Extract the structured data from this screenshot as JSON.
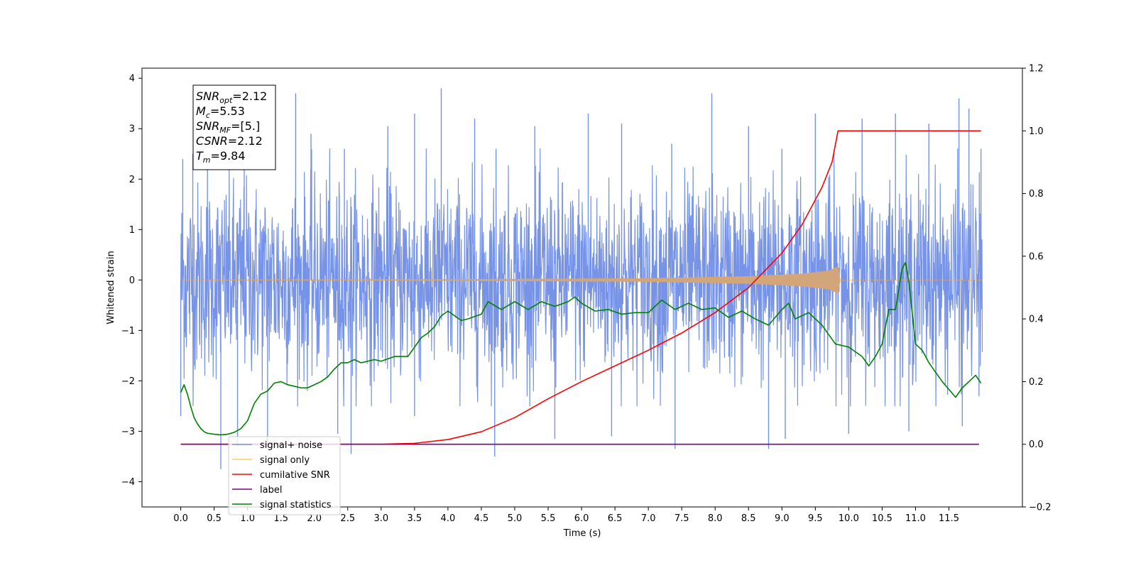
{
  "chart_data": {
    "type": "line",
    "xlabel": "Time (s)",
    "ylabel_left": "Whitened strain",
    "ylabel_right": "",
    "xlim": [
      -0.58,
      12.6
    ],
    "ylim_left": [
      -4.5,
      4.2
    ],
    "ylim_right": [
      -0.2,
      1.2
    ],
    "x_ticks": [
      0.0,
      0.5,
      1.0,
      1.5,
      2.0,
      2.5,
      3.0,
      3.5,
      4.0,
      4.5,
      5.0,
      5.5,
      6.0,
      6.5,
      7.0,
      7.5,
      8.0,
      8.5,
      9.0,
      9.5,
      10.0,
      10.5,
      11.0,
      11.5
    ],
    "y_ticks_left": [
      4,
      3,
      2,
      1,
      0,
      -1,
      -2,
      -3,
      -4
    ],
    "y_ticks_right": [
      1.2,
      1.0,
      0.8,
      0.6,
      0.4,
      0.2,
      0.0,
      -0.2
    ],
    "grid": false,
    "legend_position": "lower-left",
    "annotation": [
      {
        "base": "SNR",
        "sub": "opt",
        "value": "=2.12"
      },
      {
        "base": "M",
        "sub": "c",
        "value": "=5.53"
      },
      {
        "base": "SNR",
        "sub": "MF",
        "value": "=[5.]"
      },
      {
        "base": "CSNR",
        "sub": "",
        "value": "=2.12"
      },
      {
        "base": "T",
        "sub": "m",
        "value": "=9.84"
      }
    ],
    "series": [
      {
        "name": "signal+ noise",
        "axis": "left",
        "color": "#7793e8",
        "kind": "noise",
        "x_range": [
          0.0,
          12.0
        ],
        "band_upper_mean": 1.6,
        "band_lower_mean": -1.6,
        "peaks_high": [
          [
            0.03,
            2.4
          ],
          [
            0.18,
            2.5
          ],
          [
            0.4,
            3.3
          ],
          [
            0.95,
            2.9
          ],
          [
            1.72,
            3.7
          ],
          [
            1.95,
            2.9
          ],
          [
            2.45,
            2.6
          ],
          [
            3.1,
            3.05
          ],
          [
            3.5,
            3.3
          ],
          [
            3.9,
            3.8
          ],
          [
            4.4,
            3.2
          ],
          [
            4.72,
            2.6
          ],
          [
            5.3,
            3.05
          ],
          [
            6.1,
            3.3
          ],
          [
            6.6,
            3.1
          ],
          [
            7.35,
            2.7
          ],
          [
            7.95,
            3.7
          ],
          [
            8.5,
            3.05
          ],
          [
            9.0,
            2.6
          ],
          [
            9.5,
            3.3
          ],
          [
            10.2,
            3.2
          ],
          [
            10.7,
            3.3
          ],
          [
            11.2,
            3.1
          ],
          [
            11.65,
            3.6
          ],
          [
            11.8,
            3.4
          ],
          [
            11.98,
            2.6
          ]
        ],
        "peaks_low": [
          [
            0.0,
            -2.7
          ],
          [
            0.6,
            -3.75
          ],
          [
            0.85,
            -3.3
          ],
          [
            1.3,
            -3.3
          ],
          [
            2.35,
            -3.05
          ],
          [
            2.55,
            -3.45
          ],
          [
            3.5,
            -2.7
          ],
          [
            4.7,
            -3.5
          ],
          [
            5.6,
            -3.15
          ],
          [
            6.45,
            -3.1
          ],
          [
            7.4,
            -3.35
          ],
          [
            8.8,
            -3.35
          ],
          [
            9.05,
            -3.15
          ],
          [
            10.0,
            -3.05
          ],
          [
            10.9,
            -3.0
          ],
          [
            11.7,
            -2.9
          ],
          [
            11.95,
            -2.3
          ]
        ]
      },
      {
        "name": "signal only",
        "axis": "left",
        "color": "#d2a679",
        "kind": "chirp",
        "x": [
          0.0,
          4.0,
          7.0,
          8.5,
          9.3,
          9.7,
          9.84,
          9.85,
          12.0
        ],
        "amplitude": [
          0.0,
          0.01,
          0.03,
          0.07,
          0.12,
          0.18,
          0.26,
          0.0,
          0.0
        ]
      },
      {
        "name": "cumilative SNR",
        "axis": "right",
        "color": "#ff0000",
        "x": [
          0.0,
          3.0,
          3.5,
          4.0,
          4.5,
          5.0,
          5.5,
          6.0,
          6.5,
          7.0,
          7.5,
          8.0,
          8.5,
          9.0,
          9.3,
          9.6,
          9.75,
          9.84,
          10.0,
          11.0,
          11.98
        ],
        "values": [
          0.0,
          0.0,
          0.003,
          0.015,
          0.04,
          0.085,
          0.145,
          0.2,
          0.25,
          0.3,
          0.355,
          0.42,
          0.5,
          0.61,
          0.7,
          0.82,
          0.9,
          1.0,
          1.0,
          1.0,
          1.0
        ]
      },
      {
        "name": "label",
        "axis": "right",
        "color": "#800080",
        "x": [
          0.0,
          11.95
        ],
        "values": [
          0.0,
          0.0
        ]
      },
      {
        "name": "signal statistics",
        "axis": "right",
        "color": "#008000",
        "x": [
          0.0,
          0.05,
          0.1,
          0.15,
          0.2,
          0.25,
          0.3,
          0.35,
          0.4,
          0.5,
          0.6,
          0.7,
          0.8,
          0.9,
          1.0,
          1.1,
          1.2,
          1.3,
          1.4,
          1.5,
          1.6,
          1.7,
          1.8,
          1.9,
          2.0,
          2.1,
          2.2,
          2.3,
          2.4,
          2.5,
          2.6,
          2.7,
          2.8,
          2.9,
          3.0,
          3.2,
          3.4,
          3.6,
          3.7,
          3.8,
          3.9,
          4.0,
          4.1,
          4.2,
          4.3,
          4.5,
          4.6,
          4.8,
          5.0,
          5.2,
          5.4,
          5.6,
          5.8,
          5.9,
          6.0,
          6.2,
          6.4,
          6.6,
          6.8,
          7.0,
          7.2,
          7.4,
          7.6,
          7.8,
          8.0,
          8.2,
          8.4,
          8.6,
          8.8,
          9.0,
          9.1,
          9.2,
          9.4,
          9.6,
          9.7,
          9.8,
          10.0,
          10.2,
          10.3,
          10.4,
          10.5,
          10.6,
          10.7,
          10.8,
          10.85,
          10.9,
          11.0,
          11.1,
          11.2,
          11.4,
          11.6,
          11.7,
          11.8,
          11.9,
          11.98
        ],
        "values": [
          0.165,
          0.19,
          0.16,
          0.12,
          0.085,
          0.065,
          0.05,
          0.04,
          0.035,
          0.032,
          0.03,
          0.032,
          0.038,
          0.05,
          0.075,
          0.13,
          0.16,
          0.17,
          0.195,
          0.2,
          0.19,
          0.185,
          0.18,
          0.18,
          0.19,
          0.2,
          0.215,
          0.24,
          0.26,
          0.26,
          0.27,
          0.26,
          0.265,
          0.27,
          0.265,
          0.28,
          0.28,
          0.34,
          0.355,
          0.375,
          0.41,
          0.425,
          0.41,
          0.395,
          0.4,
          0.415,
          0.455,
          0.43,
          0.455,
          0.43,
          0.455,
          0.44,
          0.455,
          0.47,
          0.45,
          0.425,
          0.43,
          0.415,
          0.42,
          0.42,
          0.46,
          0.43,
          0.45,
          0.43,
          0.435,
          0.405,
          0.425,
          0.4,
          0.38,
          0.43,
          0.45,
          0.4,
          0.42,
          0.38,
          0.35,
          0.32,
          0.31,
          0.28,
          0.25,
          0.28,
          0.32,
          0.43,
          0.43,
          0.56,
          0.58,
          0.52,
          0.32,
          0.3,
          0.26,
          0.2,
          0.15,
          0.18,
          0.2,
          0.22,
          0.195
        ]
      }
    ],
    "legend": [
      {
        "label": "signal+ noise",
        "color": "#7793e8"
      },
      {
        "label": "signal only",
        "color": "#ffc966"
      },
      {
        "label": "cumilative SNR",
        "color": "#ff0000"
      },
      {
        "label": "label",
        "color": "#800080"
      },
      {
        "label": "signal statistics",
        "color": "#008000"
      }
    ]
  }
}
